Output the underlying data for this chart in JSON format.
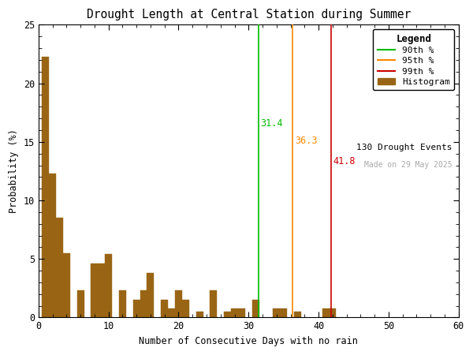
{
  "title": "Drought Length at Central Station during Summer",
  "xlabel": "Number of Consecutive Days with no rain",
  "ylabel": "Probability (%)",
  "xlim": [
    0,
    60
  ],
  "ylim": [
    0,
    25
  ],
  "xticks": [
    0,
    10,
    20,
    30,
    40,
    50,
    60
  ],
  "yticks": [
    0,
    5,
    10,
    15,
    20,
    25
  ],
  "bin_width": 1,
  "bar_color": "#996515",
  "bar_edgecolor": "#996515",
  "percentile_90": 31.4,
  "percentile_95": 36.3,
  "percentile_99": 41.8,
  "p90_color": "#00bb00",
  "p95_color": "#ff8800",
  "p99_color": "#cc0000",
  "n_events": 130,
  "made_on": "Made on 29 May 2025",
  "bar_values": {
    "1": 22.3,
    "2": 12.3,
    "3": 8.5,
    "4": 5.5,
    "5": 0.0,
    "6": 2.3,
    "7": 0.0,
    "8": 4.6,
    "9": 4.6,
    "10": 5.4,
    "11": 0.0,
    "12": 2.3,
    "13": 0.0,
    "14": 1.5,
    "15": 2.3,
    "16": 3.8,
    "17": 0.0,
    "18": 1.5,
    "19": 0.8,
    "20": 2.3,
    "21": 1.5,
    "22": 0.0,
    "23": 0.5,
    "24": 0.0,
    "25": 2.3,
    "26": 0.0,
    "27": 0.5,
    "28": 0.8,
    "29": 0.8,
    "30": 0.0,
    "31": 1.5,
    "32": 0.0,
    "33": 0.0,
    "34": 0.8,
    "35": 0.8,
    "36": 0.0,
    "37": 0.5,
    "38": 0.0,
    "41": 0.8,
    "42": 0.8,
    "43": 0.0
  },
  "figsize": [
    6.0,
    4.5
  ],
  "dpi": 100
}
